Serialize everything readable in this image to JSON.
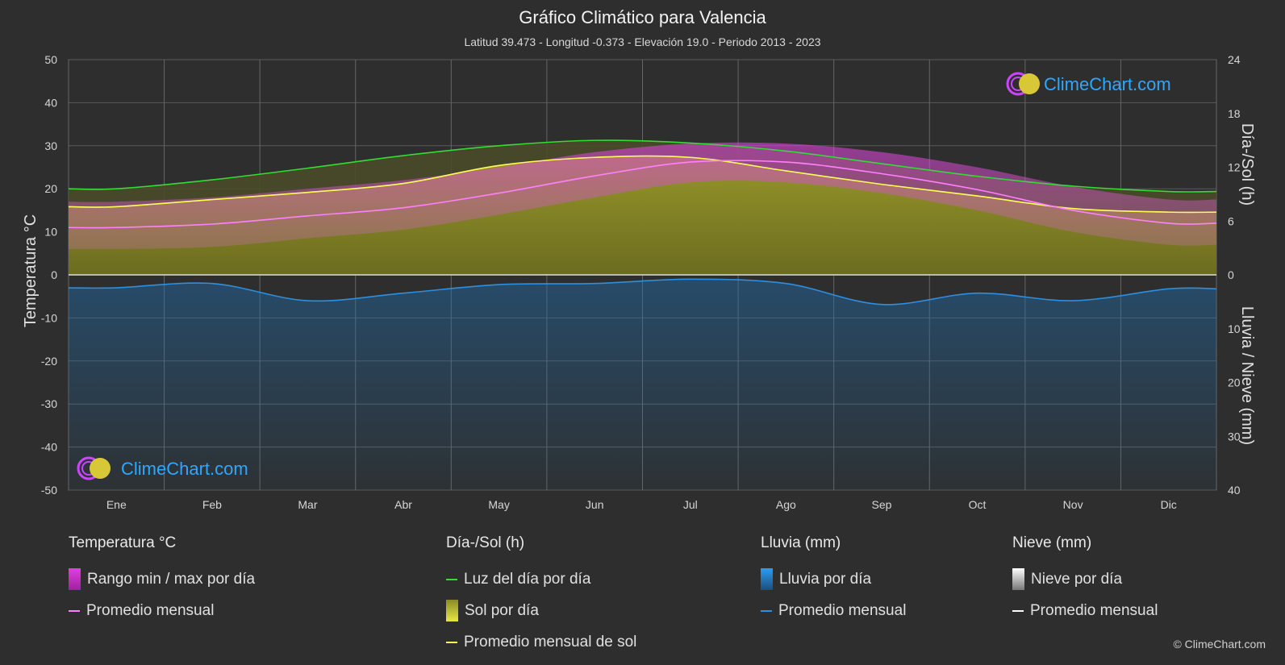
{
  "header": {
    "title": "Gráfico Climático para Valencia",
    "subtitle": "Latitud 39.473 - Longitud -0.373 - Elevación 19.0 - Periodo 2013 - 2023"
  },
  "logo": {
    "text": "ClimeChart.com"
  },
  "copyright": "© ClimeChart.com",
  "colors": {
    "background": "#2e2e2e",
    "temp_range": "#e040e0",
    "temp_avg": "#ff80ff",
    "daylight": "#33dd33",
    "sunshine": "#c8c83a",
    "sunshine_avg": "#ffff55",
    "rain": "#1f8fe0",
    "rain_avg": "#2d8fe0",
    "snow": "#dddddd",
    "snow_avg": "#ffffff",
    "grid": "#5a5a5a",
    "logo_blue": "#2ea8ff"
  },
  "legend": {
    "temperature": {
      "heading": "Temperatura °C",
      "items": [
        "Rango min / max por día",
        "Promedio mensual"
      ]
    },
    "sun": {
      "heading": "Día-/Sol (h)",
      "items": [
        "Luz del día por día",
        "Sol por día",
        "Promedio mensual de sol"
      ]
    },
    "rain": {
      "heading": "Lluvia (mm)",
      "items": [
        "Lluvia por día",
        "Promedio mensual"
      ]
    },
    "snow": {
      "heading": "Nieve (mm)",
      "items": [
        "Nieve por día",
        "Promedio mensual"
      ]
    }
  },
  "chart_data": {
    "type": "line",
    "categories": [
      "Ene",
      "Feb",
      "Mar",
      "Abr",
      "May",
      "Jun",
      "Jul",
      "Ago",
      "Sep",
      "Oct",
      "Nov",
      "Dic"
    ],
    "y_left": {
      "label": "Temperatura °C",
      "range": [
        -50,
        50
      ],
      "ticks": [
        50,
        40,
        30,
        20,
        10,
        0,
        -10,
        -20,
        -30,
        -40,
        -50
      ]
    },
    "y_right_top": {
      "label": "Día-/Sol (h)",
      "range": [
        0,
        24
      ],
      "ticks": [
        24,
        18,
        12,
        6,
        0
      ]
    },
    "y_right_bottom": {
      "label": "Lluvia / Nieve (mm)",
      "range": [
        0,
        40
      ],
      "ticks": [
        0,
        10,
        20,
        30,
        40
      ]
    },
    "grid": true,
    "series": [
      {
        "name": "Promedio mensual",
        "group": "temperature",
        "values": [
          11.0,
          11.8,
          13.7,
          15.6,
          19.0,
          23.0,
          26.2,
          26.2,
          23.5,
          19.8,
          15.0,
          12.0
        ]
      },
      {
        "name": "Rango min / max por día (máx)",
        "group": "temperature",
        "values": [
          17.0,
          18.0,
          20.0,
          22.0,
          25.0,
          28.5,
          30.5,
          30.5,
          28.5,
          25.0,
          20.5,
          17.5
        ]
      },
      {
        "name": "Rango min / max por día (mín)",
        "group": "temperature",
        "values": [
          6.0,
          6.5,
          8.5,
          10.5,
          14.0,
          18.0,
          21.5,
          21.5,
          19.0,
          15.0,
          10.0,
          7.0
        ]
      },
      {
        "name": "Luz del día por día",
        "group": "sun",
        "values": [
          9.6,
          10.6,
          11.9,
          13.3,
          14.4,
          15.0,
          14.7,
          13.8,
          12.4,
          11.0,
          9.9,
          9.3
        ]
      },
      {
        "name": "Promedio mensual de sol",
        "group": "sun",
        "values": [
          7.6,
          8.4,
          9.2,
          10.2,
          12.2,
          13.1,
          13.1,
          11.6,
          10.1,
          8.8,
          7.4,
          7.0
        ]
      },
      {
        "name": "Lluvia Promedio mensual",
        "group": "rain",
        "values": [
          2.4,
          1.6,
          4.8,
          3.4,
          1.8,
          1.6,
          0.8,
          1.6,
          5.5,
          3.4,
          4.8,
          2.6
        ]
      }
    ]
  }
}
